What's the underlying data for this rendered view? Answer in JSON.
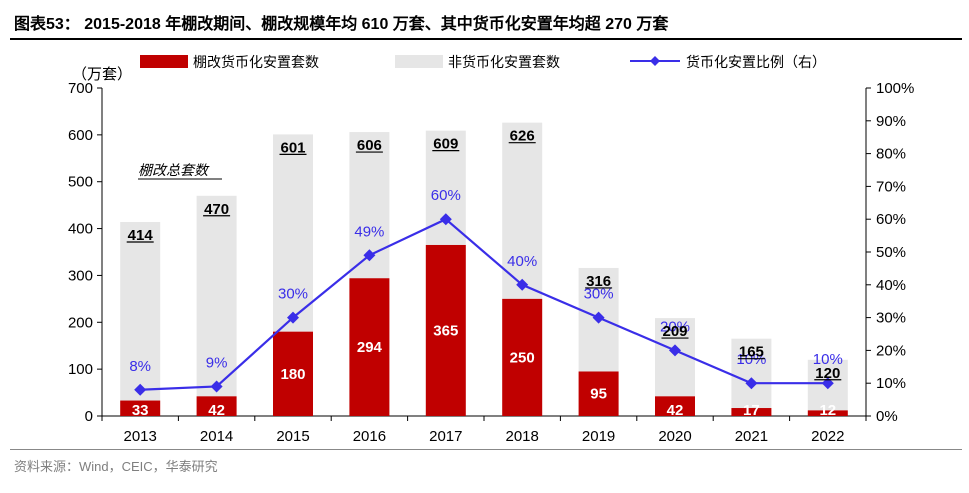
{
  "header": {
    "title": "图表53：  2015-2018 年棚改期间、棚改规模年均 610 万套、其中货币化安置年均超 270 万套"
  },
  "footer": {
    "source": "资料来源：Wind，CEIC，华泰研究"
  },
  "chart_data": {
    "type": "bar",
    "categories": [
      "2013",
      "2014",
      "2015",
      "2016",
      "2017",
      "2018",
      "2019",
      "2020",
      "2021",
      "2022"
    ],
    "series": [
      {
        "name": "棚改货币化安置套数",
        "type": "bar",
        "color": "#c00000",
        "values": [
          33,
          42,
          180,
          294,
          365,
          250,
          95,
          42,
          17,
          12
        ]
      },
      {
        "name": "非货币化安置套数",
        "type": "bar",
        "color": "#e6e6e6",
        "values": [
          381,
          428,
          421,
          312,
          244,
          376,
          221,
          167,
          148,
          108
        ]
      },
      {
        "name": "货币化安置比例（右）",
        "type": "line",
        "axis": "right",
        "color": "#3a2ee8",
        "values": [
          8,
          9,
          30,
          49,
          60,
          40,
          30,
          20,
          10,
          10
        ],
        "labels": [
          "8%",
          "9%",
          "30%",
          "49%",
          "60%",
          "40%",
          "30%",
          "20%",
          "10%",
          "10%"
        ]
      }
    ],
    "totals": [
      414,
      470,
      601,
      606,
      609,
      626,
      316,
      209,
      165,
      120
    ],
    "total_labels": [
      "414",
      "470",
      "601",
      "606",
      "609",
      "626",
      "316",
      "209",
      "165",
      "120"
    ],
    "bar_labels": [
      "33",
      "42",
      "180",
      "294",
      "365",
      "250",
      "95",
      "42",
      "17",
      "12"
    ],
    "annotation": "棚改总套数",
    "ylabel": "（万套）",
    "ylim": [
      0,
      700
    ],
    "yticks": [
      "0",
      "100",
      "200",
      "300",
      "400",
      "500",
      "600",
      "700"
    ],
    "y2lim": [
      0,
      100
    ],
    "y2ticks": [
      "0%",
      "10%",
      "20%",
      "30%",
      "40%",
      "50%",
      "60%",
      "70%",
      "80%",
      "90%",
      "100%"
    ],
    "legend_position": "top"
  }
}
